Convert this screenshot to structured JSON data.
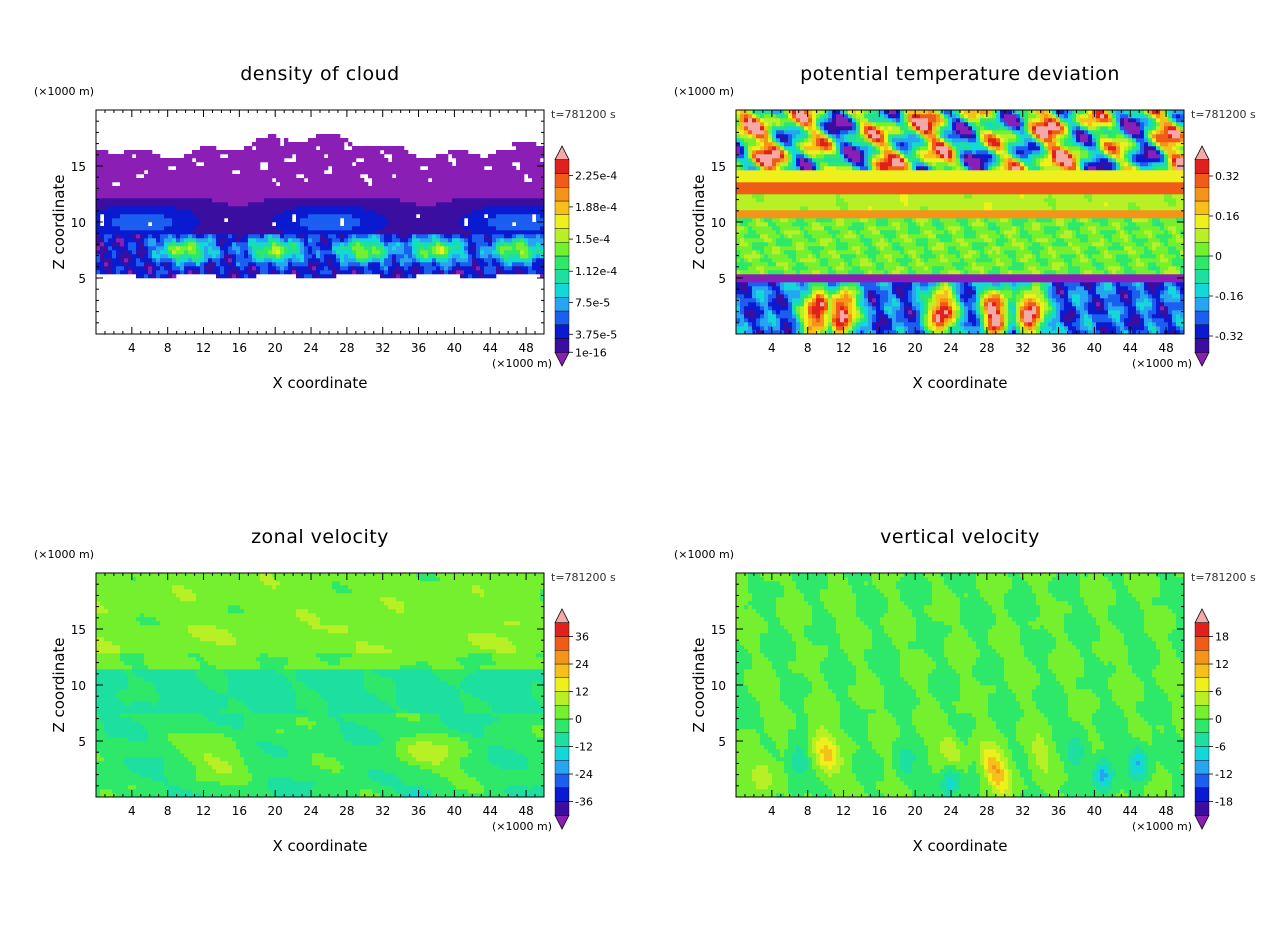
{
  "x_unit": "(×1000 m)",
  "z_unit": "(×1000 m)",
  "x_axis_label": "X coordinate",
  "z_axis_label": "Z coordinate",
  "time_stamp": "t=781200 s",
  "palette": [
    "#8a1fb5",
    "#3a0fa0",
    "#0a1ad0",
    "#1b5ef0",
    "#27a4f2",
    "#12d8d8",
    "#1de0a0",
    "#2ee86a",
    "#74f02e",
    "#b8f026",
    "#eef01c",
    "#f6c01a",
    "#f6931a",
    "#f05c18",
    "#e0201a",
    "#f4a8a8"
  ],
  "chart_data": [
    {
      "type": "heatmap",
      "title": "density of cloud",
      "xlabel": "X coordinate",
      "ylabel": "Z coordinate",
      "xlim": [
        0,
        50
      ],
      "ylim": [
        0,
        20
      ],
      "x_ticks": [
        4,
        8,
        12,
        16,
        20,
        24,
        28,
        32,
        36,
        40,
        44,
        48
      ],
      "y_ticks": [
        5,
        10,
        15
      ],
      "colorbar_labels": [
        "1e-16",
        "3.75e-5",
        "7.5e-5",
        "1.12e-4",
        "1.5e-4",
        "1.88e-4",
        "2.25e-4"
      ],
      "colorbar_values": [
        1e-16,
        3.75e-05,
        7.5e-05,
        0.000112,
        0.00015,
        0.000188,
        0.000225
      ],
      "field": "cloud",
      "vmin": 0,
      "vmax": 0.00026
    },
    {
      "type": "heatmap",
      "title": "potential temperature deviation",
      "xlabel": "X coordinate",
      "ylabel": "Z coordinate",
      "xlim": [
        0,
        50
      ],
      "ylim": [
        0,
        20
      ],
      "x_ticks": [
        4,
        8,
        12,
        16,
        20,
        24,
        28,
        32,
        36,
        40,
        44,
        48
      ],
      "y_ticks": [
        5,
        10,
        15
      ],
      "colorbar_labels": [
        "-0.32",
        "-0.16",
        "0",
        "0.16",
        "0.32"
      ],
      "colorbar_values": [
        -0.32,
        -0.16,
        0,
        0.16,
        0.32
      ],
      "field": "theta",
      "vmin": -0.44,
      "vmax": 0.44
    },
    {
      "type": "heatmap",
      "title": "zonal velocity",
      "xlabel": "X coordinate",
      "ylabel": "Z coordinate",
      "xlim": [
        0,
        50
      ],
      "ylim": [
        0,
        20
      ],
      "x_ticks": [
        4,
        8,
        12,
        16,
        20,
        24,
        28,
        32,
        36,
        40,
        44,
        48
      ],
      "y_ticks": [
        5,
        10,
        15
      ],
      "colorbar_labels": [
        "-36",
        "-24",
        "-12",
        "0",
        "12",
        "24",
        "36"
      ],
      "colorbar_values": [
        -36,
        -24,
        -12,
        0,
        12,
        24,
        36
      ],
      "field": "uvel",
      "vmin": -48,
      "vmax": 48
    },
    {
      "type": "heatmap",
      "title": "vertical velocity",
      "xlabel": "X coordinate",
      "ylabel": "Z coordinate",
      "xlim": [
        0,
        50
      ],
      "ylim": [
        0,
        20
      ],
      "x_ticks": [
        4,
        8,
        12,
        16,
        20,
        24,
        28,
        32,
        36,
        40,
        44,
        48
      ],
      "y_ticks": [
        5,
        10,
        15
      ],
      "colorbar_labels": [
        "-18",
        "-12",
        "-6",
        "0",
        "6",
        "12",
        "18"
      ],
      "colorbar_values": [
        -18,
        -12,
        -6,
        0,
        6,
        12,
        18
      ],
      "field": "wvel",
      "vmin": -24,
      "vmax": 24
    }
  ]
}
